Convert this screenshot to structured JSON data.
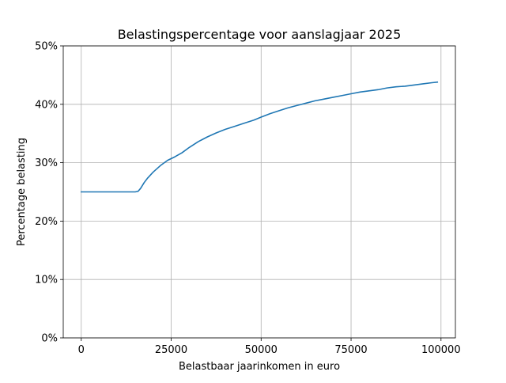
{
  "chart_data": {
    "type": "line",
    "title": "Belastingspercentage voor aanslagjaar 2025",
    "xlabel": "Belastbaar jaarinkomen in euro",
    "ylabel": "Percentage belasting",
    "xlim": [
      -5000,
      104000
    ],
    "ylim": [
      0,
      50
    ],
    "xticks": [
      0,
      25000,
      50000,
      75000,
      100000
    ],
    "xtick_labels": [
      "0",
      "25000",
      "50000",
      "75000",
      "100000"
    ],
    "yticks": [
      0,
      10,
      20,
      30,
      40,
      50
    ],
    "ytick_labels": [
      "0%",
      "10%",
      "20%",
      "30%",
      "40%",
      "50%"
    ],
    "grid": true,
    "line_color": "#1f77b4",
    "series": [
      {
        "x": [
          0,
          5000,
          10000,
          15000,
          15800,
          16500,
          17500,
          18500,
          20000,
          22000,
          24000,
          26000,
          28000,
          30000,
          32500,
          35000,
          37500,
          40000,
          42500,
          45000,
          48000,
          50000,
          52500,
          55000,
          57500,
          60000,
          62500,
          65000,
          67500,
          70000,
          72500,
          75000,
          77500,
          80000,
          82500,
          85000,
          87500,
          90000,
          92500,
          95000,
          97500,
          99000
        ],
        "y": [
          25.0,
          25.0,
          25.0,
          25.0,
          25.1,
          25.6,
          26.6,
          27.4,
          28.4,
          29.5,
          30.4,
          31.0,
          31.7,
          32.6,
          33.6,
          34.4,
          35.1,
          35.7,
          36.2,
          36.7,
          37.3,
          37.8,
          38.4,
          38.9,
          39.4,
          39.8,
          40.2,
          40.6,
          40.9,
          41.2,
          41.5,
          41.8,
          42.1,
          42.3,
          42.5,
          42.8,
          43.0,
          43.1,
          43.3,
          43.5,
          43.7,
          43.8
        ]
      }
    ]
  }
}
